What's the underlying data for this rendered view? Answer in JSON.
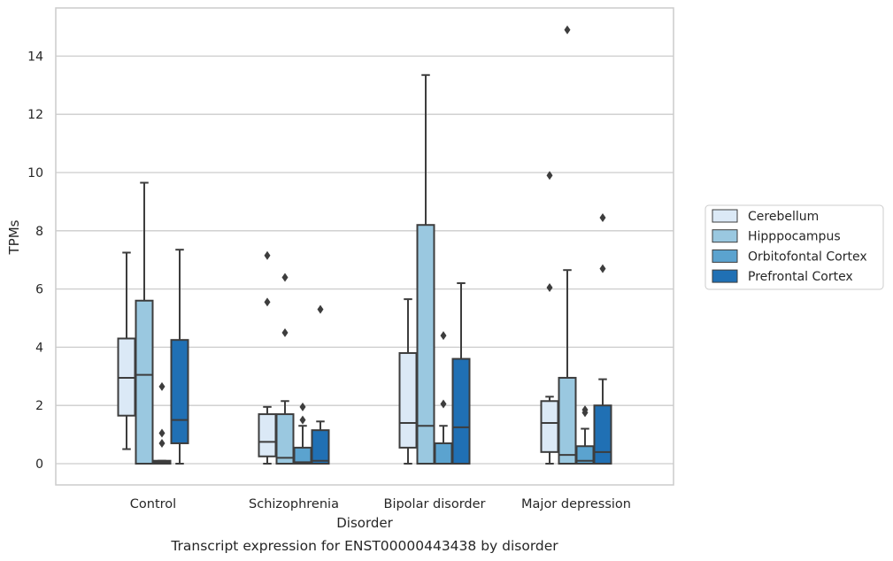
{
  "caption": "Transcript expression for ENST00000443438 by disorder",
  "colors": {
    "series": [
      "#dbe9f6",
      "#9ac8e0",
      "#5ba3cf",
      "#2070b4"
    ],
    "box_edge": "#3d3d3d",
    "grid": "#cccccc",
    "frame": "#cccccc"
  },
  "chart_data": {
    "type": "box",
    "xlabel": "Disorder",
    "ylabel": "TPMs",
    "ylim": [
      -0.7,
      15.5
    ],
    "yticks": [
      0,
      2,
      4,
      6,
      8,
      10,
      12,
      14
    ],
    "grid": "horizontal",
    "legend_position": "right",
    "categories": [
      "Control",
      "Schizophrenia",
      "Bipolar disorder",
      "Major depression"
    ],
    "series": [
      {
        "name": "Cerebellum",
        "boxes": [
          {
            "whislo": 0.5,
            "q1": 1.65,
            "med": 2.95,
            "q3": 4.3,
            "whishi": 7.25,
            "fliers": []
          },
          {
            "whislo": 0.0,
            "q1": 0.25,
            "med": 0.75,
            "q3": 1.7,
            "whishi": 1.95,
            "fliers": [
              5.55,
              7.15
            ]
          },
          {
            "whislo": 0.0,
            "q1": 0.55,
            "med": 1.4,
            "q3": 3.8,
            "whishi": 5.65,
            "fliers": []
          },
          {
            "whislo": 0.0,
            "q1": 0.4,
            "med": 1.4,
            "q3": 2.15,
            "whishi": 2.3,
            "fliers": [
              6.05,
              9.9
            ]
          }
        ]
      },
      {
        "name": "Hipppocampus",
        "boxes": [
          {
            "whislo": 0.0,
            "q1": 0.0,
            "med": 3.05,
            "q3": 5.6,
            "whishi": 9.65,
            "fliers": []
          },
          {
            "whislo": 0.0,
            "q1": 0.0,
            "med": 0.2,
            "q3": 1.7,
            "whishi": 2.15,
            "fliers": [
              4.5,
              6.4
            ]
          },
          {
            "whislo": 0.0,
            "q1": 0.0,
            "med": 1.3,
            "q3": 8.2,
            "whishi": 13.35,
            "fliers": []
          },
          {
            "whislo": 0.0,
            "q1": 0.0,
            "med": 0.3,
            "q3": 2.95,
            "whishi": 6.65,
            "fliers": [
              14.9
            ]
          }
        ]
      },
      {
        "name": "Orbitofontal Cortex",
        "boxes": [
          {
            "whislo": 0.0,
            "q1": 0.0,
            "med": 0.05,
            "q3": 0.1,
            "whishi": 0.1,
            "fliers": [
              0.7,
              1.05,
              2.65
            ]
          },
          {
            "whislo": 0.0,
            "q1": 0.0,
            "med": 0.05,
            "q3": 0.55,
            "whishi": 1.3,
            "fliers": [
              1.5,
              1.95
            ]
          },
          {
            "whislo": 0.0,
            "q1": 0.0,
            "med": 0.0,
            "q3": 0.7,
            "whishi": 1.3,
            "fliers": [
              2.05,
              4.4
            ]
          },
          {
            "whislo": 0.0,
            "q1": 0.0,
            "med": 0.1,
            "q3": 0.6,
            "whishi": 1.2,
            "fliers": [
              1.75,
              1.85
            ]
          }
        ]
      },
      {
        "name": "Prefrontal Cortex",
        "boxes": [
          {
            "whislo": 0.0,
            "q1": 0.7,
            "med": 1.5,
            "q3": 4.25,
            "whishi": 7.35,
            "fliers": []
          },
          {
            "whislo": 0.0,
            "q1": 0.0,
            "med": 0.1,
            "q3": 1.15,
            "whishi": 1.45,
            "fliers": [
              5.3
            ]
          },
          {
            "whislo": 0.0,
            "q1": 0.0,
            "med": 1.25,
            "q3": 3.6,
            "whishi": 6.2,
            "fliers": []
          },
          {
            "whislo": 0.0,
            "q1": 0.0,
            "med": 0.4,
            "q3": 2.0,
            "whishi": 2.9,
            "fliers": [
              6.7,
              8.45
            ]
          }
        ]
      }
    ]
  }
}
